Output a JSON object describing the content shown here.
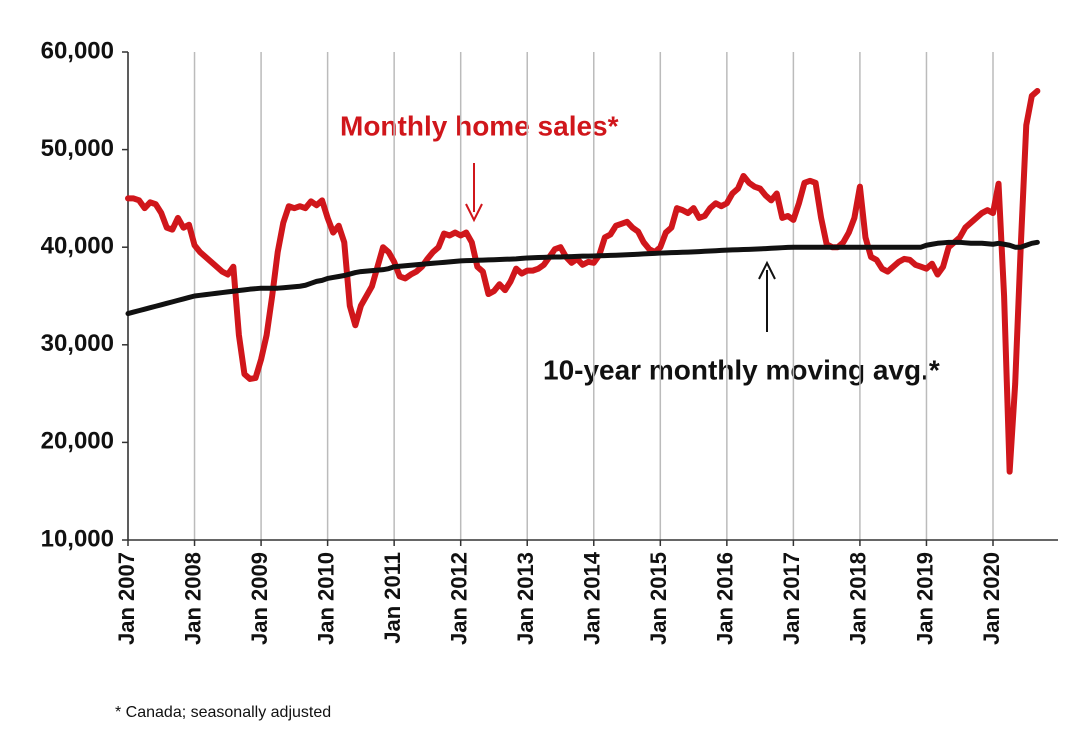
{
  "chart_data": {
    "type": "line",
    "annotations": [
      "Monthly home sales*",
      "10-year monthly moving avg.*"
    ],
    "footnote": "* Canada; seasonally adjusted",
    "categories": [
      "Jan 2007",
      null,
      null,
      null,
      null,
      null,
      null,
      null,
      null,
      null,
      null,
      null,
      "Jan 2008",
      null,
      null,
      null,
      null,
      null,
      null,
      null,
      null,
      null,
      null,
      null,
      "Jan 2009",
      null,
      null,
      null,
      null,
      null,
      null,
      null,
      null,
      null,
      null,
      null,
      "Jan 2010",
      null,
      null,
      null,
      null,
      null,
      null,
      null,
      null,
      null,
      null,
      null,
      "Jan 2011",
      null,
      null,
      null,
      null,
      null,
      null,
      null,
      null,
      null,
      null,
      null,
      "Jan 2012",
      null,
      null,
      null,
      null,
      null,
      null,
      null,
      null,
      null,
      null,
      null,
      "Jan 2013",
      null,
      null,
      null,
      null,
      null,
      null,
      null,
      null,
      null,
      null,
      null,
      "Jan 2014",
      null,
      null,
      null,
      null,
      null,
      null,
      null,
      null,
      null,
      null,
      null,
      "Jan 2015",
      null,
      null,
      null,
      null,
      null,
      null,
      null,
      null,
      null,
      null,
      null,
      "Jan 2016",
      null,
      null,
      null,
      null,
      null,
      null,
      null,
      null,
      null,
      null,
      null,
      "Jan 2017",
      null,
      null,
      null,
      null,
      null,
      null,
      null,
      null,
      null,
      null,
      null,
      "Jan 2018",
      null,
      null,
      null,
      null,
      null,
      null,
      null,
      null,
      null,
      null,
      null,
      "Jan 2019",
      null,
      null,
      null,
      null,
      null,
      null,
      null,
      null,
      null,
      null,
      null,
      "Jan 2020",
      null,
      null,
      null,
      null,
      null,
      null,
      null,
      null
    ],
    "series": [
      {
        "name": "Monthly home sales*",
        "color": "#d0161b",
        "values": [
          45000,
          45000,
          44800,
          44000,
          44600,
          44400,
          43500,
          42000,
          41800,
          43000,
          42000,
          42300,
          40200,
          39500,
          39000,
          38500,
          38000,
          37500,
          37200,
          38000,
          31000,
          27000,
          26500,
          26600,
          28500,
          31000,
          35000,
          39500,
          42500,
          44200,
          44000,
          44200,
          44000,
          44700,
          44300,
          44800,
          43000,
          41500,
          42200,
          40500,
          34000,
          32000,
          34000,
          35000,
          36000,
          38000,
          40000,
          39500,
          38500,
          37000,
          36800,
          37200,
          37500,
          38000,
          38800,
          39500,
          40000,
          41400,
          41200,
          41500,
          41200,
          41500,
          40500,
          38000,
          37500,
          35200,
          35500,
          36200,
          35600,
          36500,
          37800,
          37300,
          37600,
          37600,
          37800,
          38200,
          39000,
          39800,
          40000,
          39000,
          38400,
          38800,
          38200,
          38500,
          38400,
          39200,
          41000,
          41300,
          42200,
          42400,
          42600,
          42000,
          41600,
          40500,
          39800,
          39500,
          40000,
          41500,
          42000,
          44000,
          43800,
          43500,
          44000,
          43000,
          43200,
          44000,
          44500,
          44200,
          44500,
          45500,
          46000,
          47300,
          46600,
          46200,
          46000,
          45300,
          44800,
          45500,
          43000,
          43200,
          42800,
          44500,
          46600,
          46800,
          46600,
          43000,
          40300,
          40000,
          40000,
          40500,
          41500,
          43000,
          46200,
          41000,
          39000,
          38700,
          37800,
          37500,
          38000,
          38500,
          38800,
          38700,
          38200,
          38000,
          37800,
          38300,
          37200,
          38000,
          40000,
          40500,
          41000,
          42000,
          42500,
          43000,
          43500,
          43800,
          43500,
          46500,
          35000,
          17000,
          26000,
          40000,
          52500,
          55500,
          56000
        ]
      },
      {
        "name": "10-year monthly moving avg.*",
        "color": "#111111",
        "values": [
          33200,
          33350,
          33500,
          33650,
          33800,
          33950,
          34100,
          34250,
          34400,
          34550,
          34700,
          34850,
          35000,
          35070,
          35140,
          35210,
          35280,
          35350,
          35420,
          35490,
          35560,
          35630,
          35700,
          35750,
          35800,
          35800,
          35800,
          35800,
          35850,
          35900,
          35950,
          36000,
          36100,
          36300,
          36500,
          36600,
          36800,
          36900,
          37000,
          37100,
          37250,
          37400,
          37500,
          37550,
          37600,
          37650,
          37700,
          37800,
          38000,
          38050,
          38100,
          38150,
          38200,
          38250,
          38300,
          38350,
          38400,
          38450,
          38500,
          38550,
          38600,
          38620,
          38640,
          38660,
          38680,
          38700,
          38720,
          38740,
          38760,
          38780,
          38800,
          38850,
          38900,
          38920,
          38940,
          38960,
          38980,
          39000,
          39000,
          39020,
          39040,
          39060,
          39080,
          39090,
          39100,
          39120,
          39140,
          39160,
          39180,
          39200,
          39220,
          39250,
          39280,
          39310,
          39340,
          39370,
          39400,
          39420,
          39440,
          39460,
          39480,
          39500,
          39520,
          39550,
          39580,
          39610,
          39640,
          39670,
          39700,
          39720,
          39740,
          39760,
          39780,
          39800,
          39830,
          39860,
          39890,
          39920,
          39950,
          39980,
          40000,
          40000,
          40000,
          40000,
          40000,
          40000,
          40000,
          40000,
          40000,
          40000,
          40000,
          40000,
          40000,
          40000,
          40000,
          40000,
          40000,
          40000,
          40000,
          40000,
          40000,
          40000,
          40000,
          40000,
          40200,
          40300,
          40400,
          40450,
          40500,
          40500,
          40500,
          40450,
          40400,
          40400,
          40400,
          40350,
          40300,
          40400,
          40300,
          40200,
          40000,
          40000,
          40200,
          40400,
          40500
        ]
      }
    ],
    "ylim": [
      10000,
      60000
    ],
    "yticks": [
      {
        "value": 10000,
        "label": "10,000"
      },
      {
        "value": 20000,
        "label": "20,000"
      },
      {
        "value": 30000,
        "label": "30,000"
      },
      {
        "value": 40000,
        "label": "40,000"
      },
      {
        "value": 50000,
        "label": "50,000"
      },
      {
        "value": 60000,
        "label": "60,000"
      }
    ],
    "grid": true
  }
}
